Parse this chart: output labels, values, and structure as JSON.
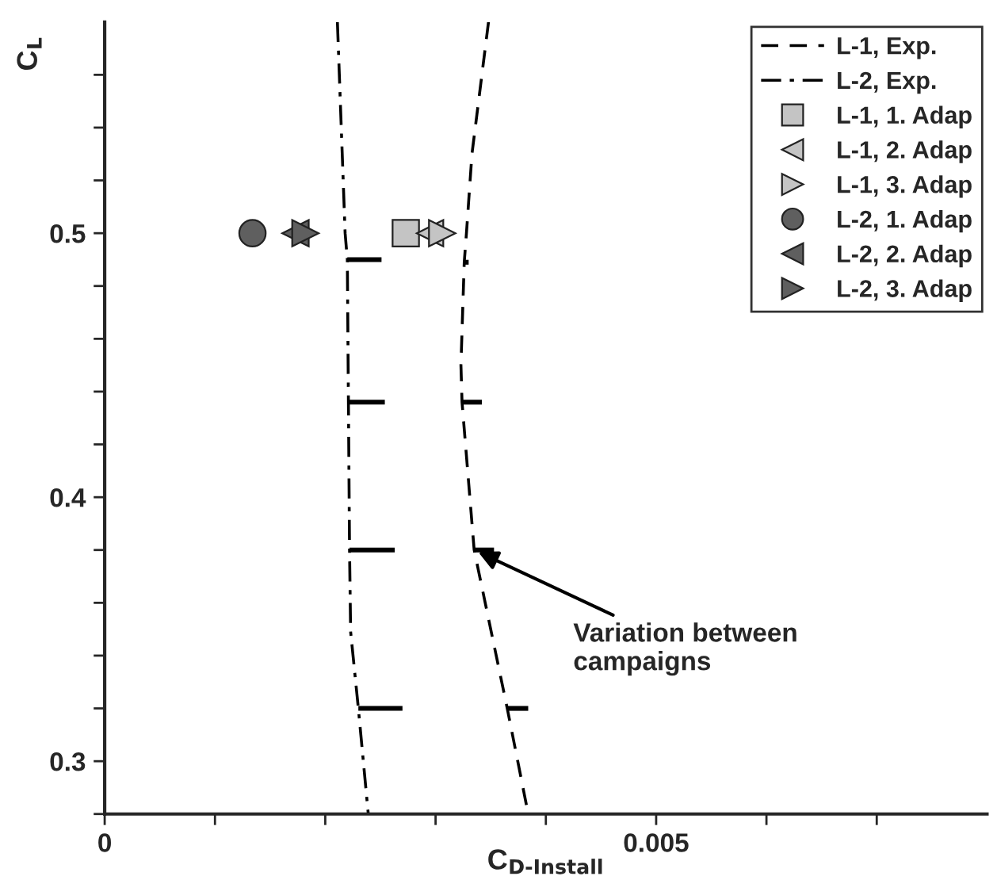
{
  "chart_data": {
    "type": "line",
    "xlabel": "C$_{D-Install}$",
    "ylabel": "C$_{L}$",
    "xlim": [
      0,
      0.008
    ],
    "ylim": [
      0.28,
      0.58
    ],
    "xticks": [
      0,
      {
        "value": 0.001,
        "label": null
      },
      {
        "value": 0.002,
        "label": null
      },
      {
        "value": 0.003,
        "label": null
      },
      {
        "value": 0.004,
        "label": null
      },
      0.005,
      {
        "value": 0.006,
        "label": null
      },
      {
        "value": 0.007,
        "label": null
      }
    ],
    "yticks": [
      {
        "value": 0.28,
        "label": null
      },
      0.3,
      {
        "value": 0.32,
        "label": null
      },
      {
        "value": 0.34,
        "label": null
      },
      {
        "value": 0.36,
        "label": null
      },
      {
        "value": 0.38,
        "label": null
      },
      0.4,
      {
        "value": 0.42,
        "label": null
      },
      {
        "value": 0.44,
        "label": null
      },
      {
        "value": 0.46,
        "label": null
      },
      {
        "value": 0.48,
        "label": null
      },
      0.5,
      {
        "value": 0.52,
        "label": null
      },
      {
        "value": 0.54,
        "label": null
      },
      {
        "value": 0.56,
        "label": null
      }
    ],
    "grid": false,
    "legend": "top right",
    "series": [
      {
        "name": "L-1, Exp.",
        "line_style": "dashed",
        "marker": "none",
        "color": "#000000",
        "x": [
          0.00348,
          0.00333,
          0.00328,
          0.00326,
          0.00323,
          0.00324,
          0.00335,
          0.00365,
          0.00384
        ],
        "values": [
          0.58,
          0.53,
          0.5,
          0.489,
          0.45,
          0.436,
          0.38,
          0.32,
          0.28
        ],
        "xerrors": [
          null,
          null,
          null,
          [
            0.00326,
            0.0033
          ],
          null,
          [
            0.00324,
            0.00342
          ],
          [
            0.00335,
            0.00353
          ],
          [
            0.00365,
            0.00384
          ],
          null
        ]
      },
      {
        "name": "L-2, Exp.",
        "line_style": "dashdot",
        "marker": "none",
        "color": "#000000",
        "x": [
          0.00211,
          0.00218,
          0.0022,
          0.00221,
          0.00222,
          0.00223,
          0.0023,
          0.00239
        ],
        "values": [
          0.58,
          0.5,
          0.49,
          0.436,
          0.38,
          0.349,
          0.32,
          0.28
        ],
        "xerrors": [
          null,
          null,
          [
            0.0022,
            0.00251
          ],
          [
            0.00221,
            0.00254
          ],
          [
            0.00222,
            0.00263
          ],
          null,
          [
            0.0023,
            0.0027
          ],
          null
        ]
      },
      {
        "name": "L-1, 1. Adap",
        "type": "scatter",
        "marker": "square",
        "color": "#c4c4c4",
        "x": [
          0.00273
        ],
        "values": [
          0.5
        ]
      },
      {
        "name": "L-1, 2. Adap",
        "type": "scatter",
        "marker": "triangle-left",
        "color": "#c4c4c4",
        "x": [
          0.00295
        ],
        "values": [
          0.5
        ]
      },
      {
        "name": "L-1, 3. Adap",
        "type": "scatter",
        "marker": "triangle-right",
        "color": "#c4c4c4",
        "x": [
          0.00306
        ],
        "values": [
          0.5
        ]
      },
      {
        "name": "L-2, 1. Adap",
        "type": "scatter",
        "marker": "circle",
        "color": "#5f5f5f",
        "x": [
          0.00134
        ],
        "values": [
          0.5
        ]
      },
      {
        "name": "L-2, 2. Adap",
        "type": "scatter",
        "marker": "triangle-left",
        "color": "#5f5f5f",
        "x": [
          0.00173
        ],
        "values": [
          0.5
        ]
      },
      {
        "name": "L-2, 3. Adap",
        "type": "scatter",
        "marker": "triangle-right",
        "color": "#5f5f5f",
        "x": [
          0.00182
        ],
        "values": [
          0.5
        ]
      }
    ],
    "annotations": [
      {
        "text": "Variation between\ncampaigns",
        "x": 0.00335,
        "y": 0.38
      }
    ]
  }
}
